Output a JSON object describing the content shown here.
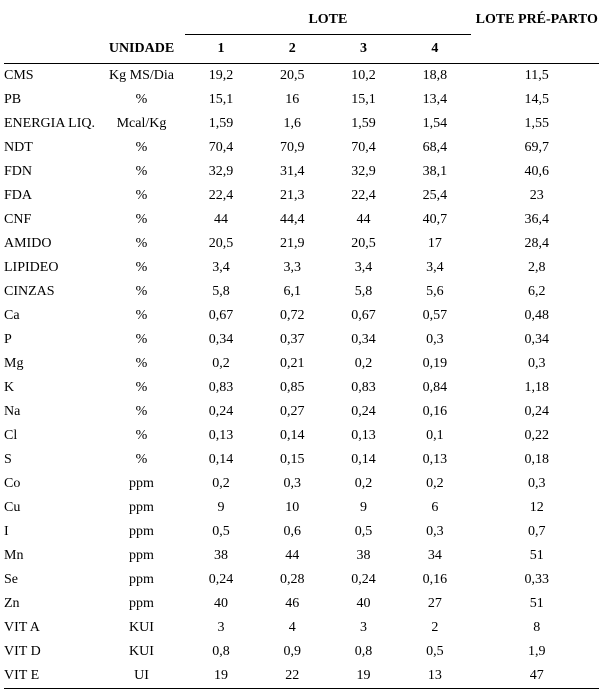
{
  "headers": {
    "unidade": "UNIDADE",
    "lote": "LOTE",
    "preparto": "LOTE PRÉ-PARTO",
    "lote_cols": [
      "1",
      "2",
      "3",
      "4"
    ]
  },
  "rows": [
    {
      "param": "CMS",
      "unit": "Kg MS/Dia",
      "v": [
        "19,2",
        "20,5",
        "10,2",
        "18,8"
      ],
      "pre": "11,5"
    },
    {
      "param": "PB",
      "unit": "%",
      "v": [
        "15,1",
        "16",
        "15,1",
        "13,4"
      ],
      "pre": "14,5"
    },
    {
      "param": "ENERGIA LIQ.",
      "unit": "Mcal/Kg",
      "v": [
        "1,59",
        "1,6",
        "1,59",
        "1,54"
      ],
      "pre": "1,55"
    },
    {
      "param": "NDT",
      "unit": "%",
      "v": [
        "70,4",
        "70,9",
        "70,4",
        "68,4"
      ],
      "pre": "69,7"
    },
    {
      "param": "FDN",
      "unit": "%",
      "v": [
        "32,9",
        "31,4",
        "32,9",
        "38,1"
      ],
      "pre": "40,6"
    },
    {
      "param": "FDA",
      "unit": "%",
      "v": [
        "22,4",
        "21,3",
        "22,4",
        "25,4"
      ],
      "pre": "23"
    },
    {
      "param": "CNF",
      "unit": "%",
      "v": [
        "44",
        "44,4",
        "44",
        "40,7"
      ],
      "pre": "36,4"
    },
    {
      "param": "AMIDO",
      "unit": "%",
      "v": [
        "20,5",
        "21,9",
        "20,5",
        "17"
      ],
      "pre": "28,4"
    },
    {
      "param": "LIPIDEO",
      "unit": "%",
      "v": [
        "3,4",
        "3,3",
        "3,4",
        "3,4"
      ],
      "pre": "2,8"
    },
    {
      "param": "CINZAS",
      "unit": "%",
      "v": [
        "5,8",
        "6,1",
        "5,8",
        "5,6"
      ],
      "pre": "6,2"
    },
    {
      "param": "Ca",
      "unit": "%",
      "v": [
        "0,67",
        "0,72",
        "0,67",
        "0,57"
      ],
      "pre": "0,48"
    },
    {
      "param": "P",
      "unit": "%",
      "v": [
        "0,34",
        "0,37",
        "0,34",
        "0,3"
      ],
      "pre": "0,34"
    },
    {
      "param": "Mg",
      "unit": "%",
      "v": [
        "0,2",
        "0,21",
        "0,2",
        "0,19"
      ],
      "pre": "0,3"
    },
    {
      "param": "K",
      "unit": "%",
      "v": [
        "0,83",
        "0,85",
        "0,83",
        "0,84"
      ],
      "pre": "1,18"
    },
    {
      "param": "Na",
      "unit": "%",
      "v": [
        "0,24",
        "0,27",
        "0,24",
        "0,16"
      ],
      "pre": "0,24"
    },
    {
      "param": "Cl",
      "unit": "%",
      "v": [
        "0,13",
        "0,14",
        "0,13",
        "0,1"
      ],
      "pre": "0,22"
    },
    {
      "param": "S",
      "unit": "%",
      "v": [
        "0,14",
        "0,15",
        "0,14",
        "0,13"
      ],
      "pre": "0,18"
    },
    {
      "param": "Co",
      "unit": "ppm",
      "v": [
        "0,2",
        "0,3",
        "0,2",
        "0,2"
      ],
      "pre": "0,3"
    },
    {
      "param": "Cu",
      "unit": "ppm",
      "v": [
        "9",
        "10",
        "9",
        "6"
      ],
      "pre": "12"
    },
    {
      "param": "I",
      "unit": "ppm",
      "v": [
        "0,5",
        "0,6",
        "0,5",
        "0,3"
      ],
      "pre": "0,7"
    },
    {
      "param": "Mn",
      "unit": "ppm",
      "v": [
        "38",
        "44",
        "38",
        "34"
      ],
      "pre": "51"
    },
    {
      "param": "Se",
      "unit": "ppm",
      "v": [
        "0,24",
        "0,28",
        "0,24",
        "0,16"
      ],
      "pre": "0,33"
    },
    {
      "param": "Zn",
      "unit": "ppm",
      "v": [
        "40",
        "46",
        "40",
        "27"
      ],
      "pre": "51"
    },
    {
      "param": "VIT A",
      "unit": "KUI",
      "v": [
        "3",
        "4",
        "3",
        "2"
      ],
      "pre": "8"
    },
    {
      "param": "VIT D",
      "unit": "KUI",
      "v": [
        "0,8",
        "0,9",
        "0,8",
        "0,5"
      ],
      "pre": "1,9"
    },
    {
      "param": "VIT E",
      "unit": "UI",
      "v": [
        "19",
        "22",
        "19",
        "13"
      ],
      "pre": "47"
    }
  ]
}
